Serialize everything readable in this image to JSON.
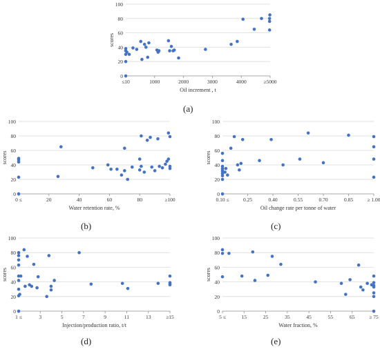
{
  "chart_data": [
    {
      "type": "scatter",
      "panel_label": "(a)",
      "xlabel": "Oil increment , t",
      "ylabel": "scores",
      "xlim": [
        0,
        5000
      ],
      "ylim": [
        0,
        100
      ],
      "x_ticks": [
        {
          "v": 0,
          "t": "≤10"
        },
        {
          "v": 1000,
          "t": "1000"
        },
        {
          "v": 2000,
          "t": "2000"
        },
        {
          "v": 3000,
          "t": "3000"
        },
        {
          "v": 4000,
          "t": "4000"
        },
        {
          "v": 5000,
          "t": "≥5000"
        }
      ],
      "y_ticks": [
        0,
        20,
        40,
        60,
        80,
        100
      ],
      "grid": true,
      "color": "#4472c4",
      "x": [
        0,
        0,
        0,
        0,
        0,
        40,
        120,
        250,
        380,
        520,
        560,
        650,
        700,
        760,
        800,
        1080,
        1120,
        1150,
        1480,
        1520,
        1580,
        1640,
        1680,
        1830,
        2760,
        3650,
        3860,
        4060,
        4450,
        4700,
        4980,
        4980,
        4980,
        4990
      ],
      "y": [
        0,
        20,
        30,
        35,
        38,
        33,
        30,
        39,
        37,
        48,
        23,
        44,
        40,
        26,
        46,
        36,
        33,
        35,
        49,
        35,
        41,
        35,
        36,
        25,
        37,
        44,
        48,
        79,
        65,
        80,
        64,
        76,
        80,
        85
      ]
    },
    {
      "type": "scatter",
      "panel_label": "(b)",
      "xlabel": "Water retention rate, %",
      "ylabel": "scores",
      "xlim": [
        0,
        100
      ],
      "ylim": [
        0,
        100
      ],
      "x_ticks": [
        {
          "v": 0,
          "t": "0 ≤"
        },
        {
          "v": 20,
          "t": "20"
        },
        {
          "v": 40,
          "t": "40"
        },
        {
          "v": 60,
          "t": "60"
        },
        {
          "v": 80,
          "t": "80"
        },
        {
          "v": 100,
          "t": "≥100"
        }
      ],
      "y_ticks": [
        0,
        20,
        40,
        60,
        80,
        100
      ],
      "grid": true,
      "color": "#4472c4",
      "x": [
        0,
        0,
        0,
        0,
        0,
        26,
        28,
        49,
        59,
        61,
        65,
        68,
        70,
        70,
        72,
        75,
        80,
        80,
        81,
        81,
        83,
        85,
        87,
        88,
        90,
        92,
        93,
        95,
        97,
        98,
        99,
        99,
        100,
        100,
        100
      ],
      "y": [
        0,
        23,
        44,
        47,
        49,
        24,
        65,
        36,
        40,
        34,
        34,
        26,
        32,
        63,
        20,
        37,
        33,
        48,
        80,
        38,
        30,
        74,
        78,
        37,
        32,
        76,
        38,
        36,
        41,
        45,
        84,
        48,
        35,
        38,
        79
      ]
    },
    {
      "type": "scatter",
      "panel_label": "(c)",
      "xlabel": "Oil change rate per tonne of water",
      "ylabel": "scores",
      "xlim": [
        0.1,
        1.0
      ],
      "ylim": [
        0,
        100
      ],
      "x_ticks": [
        {
          "v": 0.1,
          "t": "0.10 ≤"
        },
        {
          "v": 0.25,
          "t": "0.25"
        },
        {
          "v": 0.4,
          "t": "0.40"
        },
        {
          "v": 0.55,
          "t": "0.55"
        },
        {
          "v": 0.7,
          "t": "0.70"
        },
        {
          "v": 0.85,
          "t": "0.85"
        },
        {
          "v": 1.0,
          "t": "≥ 1.00"
        }
      ],
      "y_ticks": [
        0,
        20,
        40,
        60,
        80,
        100
      ],
      "grid": true,
      "color": "#4472c4",
      "x": [
        0.1,
        0.1,
        0.1,
        0.1,
        0.1,
        0.1,
        0.1,
        0.1,
        0.1,
        0.1,
        0.115,
        0.12,
        0.13,
        0.15,
        0.17,
        0.19,
        0.2,
        0.21,
        0.22,
        0.32,
        0.39,
        0.46,
        0.56,
        0.61,
        0.7,
        0.85,
        1.0,
        1.0,
        1.0,
        1.0
      ],
      "y": [
        0,
        20,
        25,
        28,
        31,
        33,
        35,
        38,
        46,
        56,
        30,
        35,
        26,
        63,
        79,
        40,
        33,
        42,
        75,
        46,
        75,
        40,
        48,
        84,
        43,
        81,
        79,
        65,
        48,
        23
      ]
    },
    {
      "type": "scatter",
      "panel_label": "(d)",
      "xlabel": "Injection/production ratio, t/t",
      "ylabel": "scores",
      "xlim": [
        1,
        15
      ],
      "ylim": [
        0,
        100
      ],
      "x_ticks": [
        {
          "v": 1,
          "t": "1 ≤"
        },
        {
          "v": 3,
          "t": "3"
        },
        {
          "v": 5,
          "t": "5"
        },
        {
          "v": 7,
          "t": "7"
        },
        {
          "v": 9,
          "t": "9"
        },
        {
          "v": 11,
          "t": "11"
        },
        {
          "v": 13,
          "t": "13"
        },
        {
          "v": 15,
          "t": "≥15"
        }
      ],
      "y_ticks": [
        0,
        20,
        40,
        60,
        80,
        100
      ],
      "grid": true,
      "color": "#4472c4",
      "x": [
        1,
        1,
        1,
        1,
        1,
        1,
        1,
        1,
        1,
        1.1,
        1.2,
        1.5,
        1.6,
        1.8,
        2.0,
        2.2,
        2.4,
        2.7,
        2.8,
        3.6,
        3.8,
        4.0,
        4.0,
        4.3,
        6.6,
        7.7,
        10.6,
        11.1,
        13.9,
        15,
        15,
        15,
        15
      ],
      "y": [
        0,
        21,
        30,
        42,
        48,
        63,
        70,
        76,
        80,
        23,
        48,
        84,
        34,
        75,
        36,
        34,
        64,
        32,
        47,
        20,
        76,
        34,
        29,
        42,
        80,
        37,
        38,
        31,
        38,
        48,
        36,
        39,
        37
      ]
    },
    {
      "type": "scatter",
      "panel_label": "(e)",
      "xlabel": "Water fraction, %",
      "ylabel": "scores",
      "xlim": [
        5,
        75
      ],
      "ylim": [
        0,
        100
      ],
      "x_ticks": [
        {
          "v": 5,
          "t": "5 ≤"
        },
        {
          "v": 15,
          "t": "15"
        },
        {
          "v": 25,
          "t": "25"
        },
        {
          "v": 35,
          "t": "35"
        },
        {
          "v": 45,
          "t": "45"
        },
        {
          "v": 55,
          "t": "55"
        },
        {
          "v": 65,
          "t": "65"
        },
        {
          "v": 75,
          "t": "≥ 75"
        }
      ],
      "y_ticks": [
        0,
        20,
        40,
        60,
        80,
        100
      ],
      "grid": true,
      "color": "#4472c4",
      "x": [
        5,
        5,
        5,
        8,
        14,
        19,
        20,
        26,
        28,
        32,
        48,
        60,
        62,
        64,
        68,
        69,
        70,
        72,
        74,
        75,
        75,
        75,
        75,
        75,
        75,
        75
      ],
      "y": [
        84,
        79,
        47,
        79,
        48,
        81,
        42,
        49,
        75,
        64,
        40,
        38,
        23,
        43,
        63,
        33,
        29,
        38,
        36,
        48,
        39,
        35,
        25,
        20,
        33,
        0
      ]
    }
  ]
}
